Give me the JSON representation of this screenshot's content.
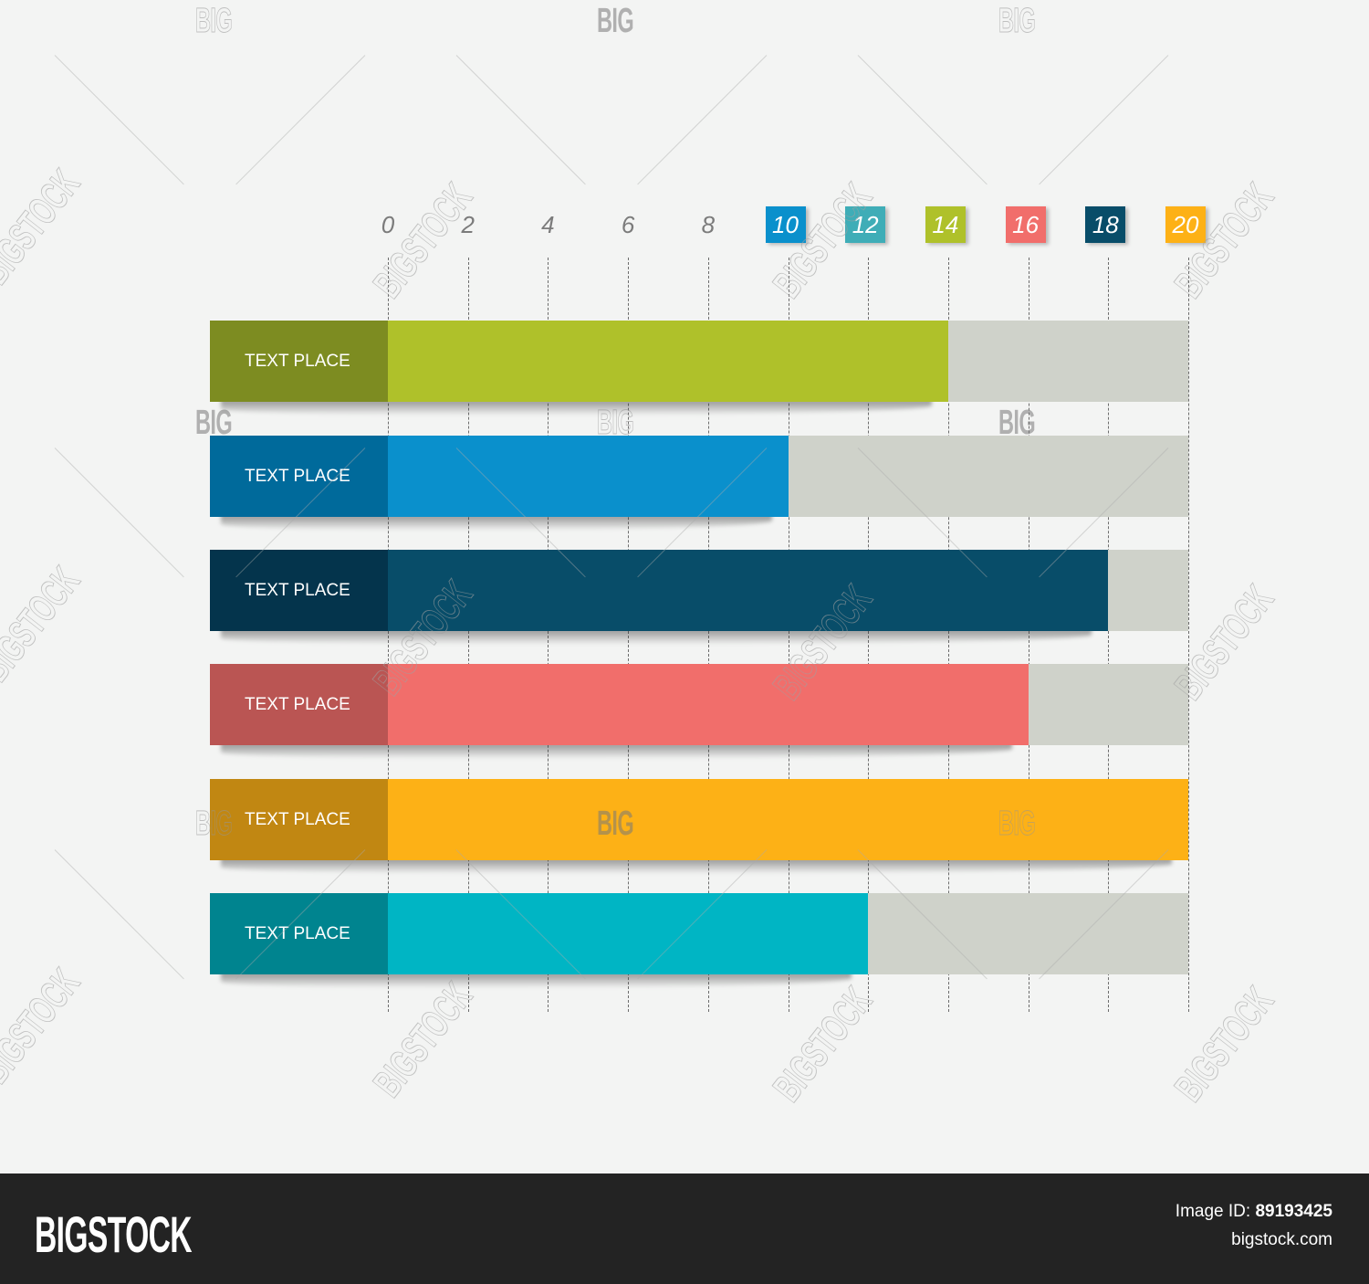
{
  "chart_data": {
    "type": "bar",
    "orientation": "horizontal",
    "title": "",
    "xlabel": "",
    "ylabel": "",
    "xlim": [
      0,
      20
    ],
    "grid": true,
    "x_ticks": [
      "0",
      "2",
      "4",
      "6",
      "8",
      "10",
      "12",
      "14",
      "16",
      "18",
      "20"
    ],
    "categories": [
      "TEXT PLACE",
      "TEXT PLACE",
      "TEXT PLACE",
      "TEXT PLACE",
      "TEXT PLACE",
      "TEXT PLACE"
    ],
    "values": [
      14,
      10,
      18,
      16,
      20,
      12
    ],
    "max_value": 20,
    "bar_colors": [
      "#afc12a",
      "#0a90cc",
      "#084d69",
      "#f16e6b",
      "#fdb116",
      "#00b5c4"
    ],
    "label_colors": [
      "#7d8c21",
      "#006a9b",
      "#04344c",
      "#ba5553",
      "#c18712",
      "#00848f"
    ],
    "track_color": "#cfd2ca",
    "legend": []
  },
  "axis": {
    "ticks": [
      {
        "label": "0",
        "value": 0,
        "badge": null
      },
      {
        "label": "2",
        "value": 2,
        "badge": null
      },
      {
        "label": "4",
        "value": 4,
        "badge": null
      },
      {
        "label": "6",
        "value": 6,
        "badge": null
      },
      {
        "label": "8",
        "value": 8,
        "badge": null
      },
      {
        "label": "10",
        "value": 10,
        "badge": "#0a90cc"
      },
      {
        "label": "12",
        "value": 12,
        "badge": "#3fadb7"
      },
      {
        "label": "14",
        "value": 14,
        "badge": "#afc12a"
      },
      {
        "label": "16",
        "value": 16,
        "badge": "#f16e6b"
      },
      {
        "label": "18",
        "value": 18,
        "badge": "#084d69"
      },
      {
        "label": "20",
        "value": 20,
        "badge": "#fdb116"
      }
    ]
  },
  "watermark": {
    "big": "BIG",
    "stock": "BIGSTOCK"
  },
  "footer": {
    "logo": "BIGSTOCK",
    "image_id_label": "Image ID:",
    "image_id": "89193425",
    "url": "bigstock.com"
  }
}
